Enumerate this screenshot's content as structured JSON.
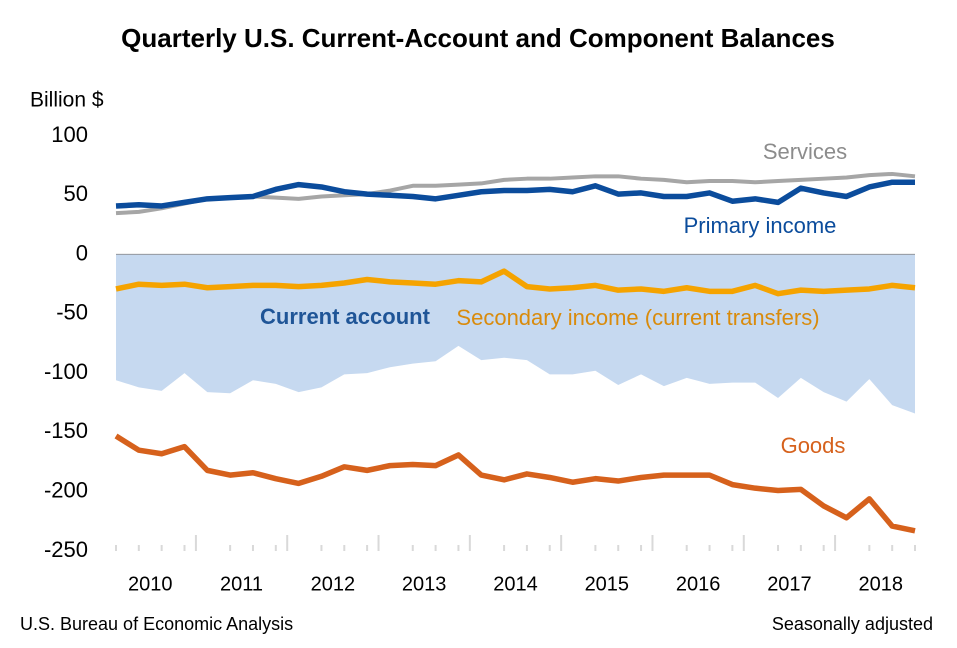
{
  "chart_data": {
    "type": "line",
    "title": "Quarterly U.S. Current-Account and Component Balances",
    "y_label": "Billion $",
    "source": "U.S. Bureau of Economic Analysis",
    "note": "Seasonally adjusted",
    "categories": [
      "2010",
      null,
      null,
      null,
      "2011",
      null,
      null,
      null,
      "2012",
      null,
      null,
      null,
      "2013",
      null,
      null,
      null,
      "2014",
      null,
      null,
      null,
      "2015",
      null,
      null,
      null,
      "2016",
      null,
      null,
      null,
      "2017",
      null,
      null,
      null,
      "2018",
      null,
      null,
      null
    ],
    "ylim": [
      -250,
      100
    ],
    "yticks": [
      100,
      50,
      0,
      -50,
      -100,
      -150,
      -200,
      -250
    ],
    "grid": false,
    "series": [
      {
        "name": "Current account",
        "style": "area",
        "color": "#c6d9f0",
        "label_color": "#1f5597",
        "values": [
          -106,
          -112,
          -115,
          -100,
          -116,
          -117,
          -106,
          -109,
          -116,
          -112,
          -101,
          -100,
          -95,
          -92,
          -90,
          -77,
          -89,
          -87,
          -89,
          -101,
          -101,
          -98,
          -110,
          -101,
          -111,
          -104,
          -109,
          -108,
          -108,
          -121,
          -104,
          -116,
          -124,
          -105,
          -127,
          -134
        ]
      },
      {
        "name": "Services",
        "style": "line",
        "color": "#a6a6a6",
        "label_color": "#8c8c8c",
        "values": [
          35,
          36,
          39,
          43,
          47,
          48,
          49,
          48,
          47,
          49,
          50,
          51,
          54,
          58,
          58,
          59,
          60,
          63,
          64,
          64,
          65,
          66,
          66,
          64,
          63,
          61,
          62,
          62,
          61,
          62,
          63,
          64,
          65,
          67,
          68,
          66
        ]
      },
      {
        "name": "Primary income",
        "style": "line",
        "color": "#0b4c9c",
        "label_color": "#0b4c9c",
        "values": [
          41,
          42,
          41,
          44,
          47,
          48,
          49,
          55,
          59,
          57,
          53,
          51,
          50,
          49,
          47,
          50,
          53,
          54,
          54,
          55,
          53,
          58,
          51,
          52,
          49,
          49,
          52,
          45,
          47,
          44,
          56,
          52,
          49,
          57,
          61,
          61
        ]
      },
      {
        "name": "Secondary income (current transfers)",
        "style": "line",
        "color": "#f5a300",
        "label_color": "#d98b0c",
        "values": [
          -29,
          -25,
          -26,
          -25,
          -28,
          -27,
          -26,
          -26,
          -27,
          -26,
          -24,
          -21,
          -23,
          -24,
          -25,
          -22,
          -23,
          -14,
          -27,
          -29,
          -28,
          -26,
          -30,
          -29,
          -31,
          -28,
          -31,
          -31,
          -26,
          -33,
          -30,
          -31,
          -30,
          -29,
          -26,
          -28
        ]
      },
      {
        "name": "Goods",
        "style": "line",
        "color": "#d6611c",
        "label_color": "#d6611c",
        "values": [
          -153,
          -165,
          -168,
          -162,
          -182,
          -186,
          -184,
          -189,
          -193,
          -187,
          -179,
          -182,
          -178,
          -177,
          -178,
          -169,
          -186,
          -190,
          -185,
          -188,
          -192,
          -189,
          -191,
          -188,
          -186,
          -186,
          -186,
          -194,
          -197,
          -199,
          -198,
          -212,
          -222,
          -206,
          -229,
          -233
        ]
      }
    ]
  }
}
